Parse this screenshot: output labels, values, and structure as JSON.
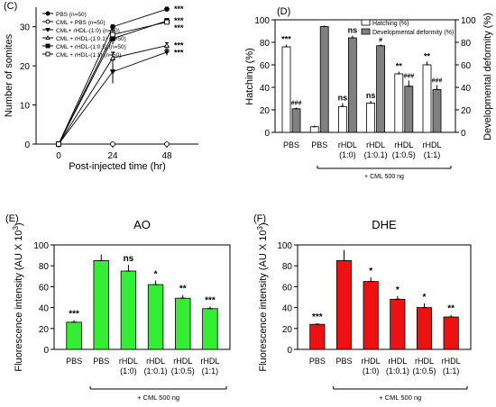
{
  "chart_data": [
    {
      "id": "C",
      "panel_label": "(C)",
      "type": "line",
      "xlabel": "Post-injected time (hr)",
      "ylabel": "Number of somites",
      "x": [
        0,
        24,
        48
      ],
      "xticks": [
        "0",
        "24",
        "48"
      ],
      "ylim": [
        0,
        35
      ],
      "yticks": [
        0,
        10,
        20,
        30
      ],
      "legend_position": "top-left",
      "series": [
        {
          "name": "PBS  (n=50)",
          "marker": "filled-circle",
          "values": [
            0,
            30,
            34.5
          ],
          "err": [
            0,
            0.5,
            0.5
          ],
          "sig": "***"
        },
        {
          "name": "CML + PBS  (n=50)",
          "marker": "open-circle",
          "values": [
            0,
            0,
            0
          ],
          "err": [
            0,
            0,
            0
          ],
          "sig": ""
        },
        {
          "name": "CML+ rHDL-(1:0) (n=50)",
          "marker": "filled-triangle-down",
          "values": [
            0,
            18.5,
            23.5
          ],
          "err": [
            0,
            3,
            0.8
          ],
          "sig": "***"
        },
        {
          "name": "CML + rHDL-(1:0.1) (n=50)",
          "marker": "open-triangle-up",
          "values": [
            0,
            22,
            25.2
          ],
          "err": [
            0,
            1.5,
            0.7
          ],
          "sig": "***"
        },
        {
          "name": "CML + rHDL-(1:0.5) (n=50)",
          "marker": "filled-square",
          "values": [
            0,
            27,
            31.5
          ],
          "err": [
            0,
            1.5,
            0.6
          ],
          "sig": "***"
        },
        {
          "name": "CML + rHDL-(1:1) (n=50)",
          "marker": "open-square",
          "values": [
            0,
            28,
            31.2
          ],
          "err": [
            0,
            1.2,
            0.6
          ],
          "sig": "***"
        }
      ]
    },
    {
      "id": "D",
      "panel_label": "(D)",
      "type": "bar",
      "ylabel": "Hatching (%)",
      "y2label": "Developmental deformity (%)",
      "ylim": [
        0,
        100
      ],
      "yticks": [
        0,
        20,
        40,
        60,
        80,
        100
      ],
      "categories": [
        "PBS",
        "PBS",
        "rHDL\n(1:0)",
        "rHDL\n(1:0.1)",
        "rHDL\n(1:0.5)",
        "rHDL\n(1:1)"
      ],
      "legend_position": "top-right",
      "series": [
        {
          "name": "Hatching (%)",
          "color": "#ffffff",
          "values": [
            76,
            5,
            23,
            26,
            52,
            60
          ],
          "err": [
            2,
            1,
            3,
            2,
            2,
            3
          ],
          "sig": [
            "***",
            "",
            "ns",
            "ns",
            "**",
            "**"
          ]
        },
        {
          "name": "Developmental deformity (%)",
          "color": "#808080",
          "values": [
            21,
            94,
            84,
            77,
            41,
            38
          ],
          "err": [
            1,
            1,
            2,
            1,
            5,
            4
          ],
          "sig": [
            "###",
            "",
            "ns",
            "#",
            "###",
            "###"
          ]
        }
      ],
      "treatment_label": "+ CML 500 ng"
    },
    {
      "id": "E",
      "panel_label": "(E)",
      "type": "bar",
      "title": "AO",
      "ylabel": "Fluorescence intensity (AU X 10",
      "ylabel_sup": "3",
      "ylabel_end": ")",
      "ylim": [
        0,
        100
      ],
      "yticks": [
        0,
        20,
        40,
        60,
        80,
        100
      ],
      "color": "#33ee33",
      "categories": [
        "PBS",
        "PBS",
        "rHDL\n(1:0)",
        "rHDL\n(1:0.1)",
        "rHDL\n(1:0.5)",
        "rHDL\n(1:1)"
      ],
      "values": [
        26,
        85,
        75,
        62,
        49,
        39
      ],
      "err": [
        2,
        6,
        6,
        4,
        3,
        2
      ],
      "sig": [
        "***",
        "",
        "ns",
        "*",
        "**",
        "***"
      ],
      "treatment_label": "+ CML 500 ng"
    },
    {
      "id": "F",
      "panel_label": "(F)",
      "type": "bar",
      "title": "DHE",
      "ylabel": "Fluorescence intensity (AU X 10",
      "ylabel_sup": "3",
      "ylabel_end": ")",
      "ylim": [
        0,
        100
      ],
      "yticks": [
        0,
        20,
        40,
        60,
        80,
        100
      ],
      "color": "#ee1111",
      "categories": [
        "PBS",
        "PBS",
        "rHDL\n(1:0)",
        "rHDL\n(1:0.1)",
        "rHDL\n(1:0.5)",
        "rHDL\n(1:1)"
      ],
      "values": [
        24,
        85,
        65,
        48,
        40,
        31
      ],
      "err": [
        1,
        10,
        4,
        3,
        4,
        2
      ],
      "sig": [
        "***",
        "",
        "*",
        "*",
        "*",
        "**"
      ],
      "treatment_label": "+ CML 500 ng"
    }
  ]
}
